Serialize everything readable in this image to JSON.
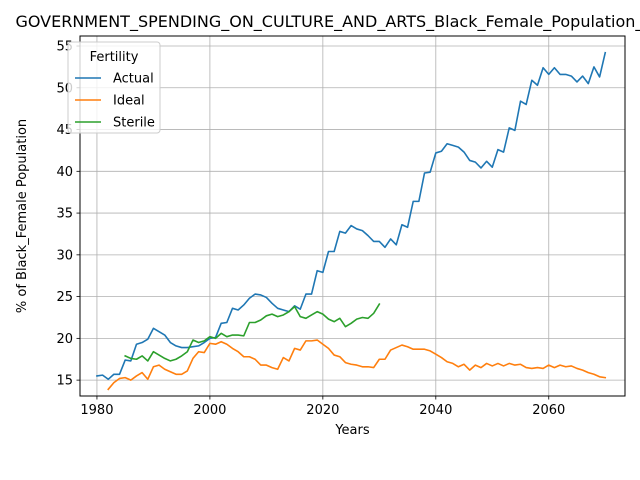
{
  "chart_data": {
    "type": "line",
    "title": "GOVERNMENT_SPENDING_ON_CULTURE_AND_ARTS_Black_Female_Population_Share",
    "xlabel": "Years",
    "ylabel": "% of Black_Female Population",
    "xlim": [
      1977,
      2073.5
    ],
    "ylim": [
      13.1,
      56.2
    ],
    "xticks": [
      1980,
      2000,
      2020,
      2040,
      2060
    ],
    "yticks": [
      15,
      20,
      25,
      30,
      35,
      40,
      45,
      50,
      55
    ],
    "grid": true,
    "legend": {
      "title": "Fertility",
      "position": "top-left"
    },
    "series": [
      {
        "name": "Actual",
        "color": "#1f77b4",
        "x": [
          1980,
          1981,
          1982,
          1983,
          1984,
          1985,
          1986,
          1987,
          1988,
          1989,
          1990,
          1991,
          1992,
          1993,
          1994,
          1995,
          1996,
          1997,
          1998,
          1999,
          2000,
          2001,
          2002,
          2003,
          2004,
          2005,
          2006,
          2007,
          2008,
          2009,
          2010,
          2011,
          2012,
          2013,
          2014,
          2015,
          2016,
          2017,
          2018,
          2019,
          2020,
          2021,
          2022,
          2023,
          2024,
          2025,
          2026,
          2027,
          2028,
          2029,
          2030,
          2031,
          2032,
          2033,
          2034,
          2035,
          2036,
          2037,
          2038,
          2039,
          2040,
          2041,
          2042,
          2043,
          2044,
          2045,
          2046,
          2047,
          2048,
          2049,
          2050,
          2051,
          2052,
          2053,
          2054,
          2055,
          2056,
          2057,
          2058,
          2059,
          2060,
          2061,
          2062,
          2063,
          2064,
          2065,
          2066,
          2067,
          2068,
          2069,
          2070
        ],
        "values": [
          15.5,
          15.6,
          15.1,
          15.7,
          15.7,
          17.4,
          17.3,
          19.3,
          19.5,
          19.9,
          21.2,
          20.8,
          20.4,
          19.5,
          19.1,
          18.9,
          18.9,
          19.0,
          19.1,
          19.5,
          20.0,
          20.1,
          21.8,
          21.9,
          23.6,
          23.4,
          24.0,
          24.8,
          25.3,
          25.2,
          24.9,
          24.2,
          23.6,
          23.4,
          23.2,
          23.9,
          23.5,
          25.3,
          25.3,
          28.1,
          27.9,
          30.4,
          30.4,
          32.8,
          32.6,
          33.5,
          33.1,
          32.9,
          32.3,
          31.6,
          31.6,
          30.9,
          31.9,
          31.2,
          33.6,
          33.3,
          36.4,
          36.4,
          39.8,
          39.9,
          42.2,
          42.4,
          43.3,
          43.1,
          42.9,
          42.3,
          41.3,
          41.1,
          40.4,
          41.2,
          40.5,
          42.6,
          42.3,
          45.2,
          44.9,
          48.4,
          48.0,
          50.9,
          50.3,
          52.4,
          51.6,
          52.4,
          51.6,
          51.6,
          51.4,
          50.7,
          51.4,
          50.5,
          52.5,
          51.3,
          54.2
        ]
      },
      {
        "name": "Ideal",
        "color": "#ff7f0e",
        "x": [
          1982,
          1983,
          1984,
          1985,
          1986,
          1987,
          1988,
          1989,
          1990,
          1991,
          1992,
          1993,
          1994,
          1995,
          1996,
          1997,
          1998,
          1999,
          2000,
          2001,
          2002,
          2003,
          2004,
          2005,
          2006,
          2007,
          2008,
          2009,
          2010,
          2011,
          2012,
          2013,
          2014,
          2015,
          2016,
          2017,
          2018,
          2019,
          2020,
          2021,
          2022,
          2023,
          2024,
          2025,
          2026,
          2027,
          2028,
          2029,
          2030,
          2031,
          2032,
          2033,
          2034,
          2035,
          2036,
          2037,
          2038,
          2039,
          2040,
          2041,
          2042,
          2043,
          2044,
          2045,
          2046,
          2047,
          2048,
          2049,
          2050,
          2051,
          2052,
          2053,
          2054,
          2055,
          2056,
          2057,
          2058,
          2059,
          2060,
          2061,
          2062,
          2063,
          2064,
          2065,
          2066,
          2067,
          2068,
          2069,
          2070
        ],
        "values": [
          13.9,
          14.7,
          15.2,
          15.3,
          15.0,
          15.5,
          15.9,
          15.1,
          16.6,
          16.8,
          16.3,
          16.0,
          15.7,
          15.7,
          16.1,
          17.6,
          18.4,
          18.3,
          19.4,
          19.3,
          19.6,
          19.3,
          18.8,
          18.4,
          17.8,
          17.8,
          17.5,
          16.8,
          16.8,
          16.5,
          16.3,
          17.7,
          17.3,
          18.8,
          18.6,
          19.7,
          19.7,
          19.8,
          19.3,
          18.8,
          18.0,
          17.8,
          17.1,
          16.9,
          16.8,
          16.6,
          16.6,
          16.5,
          17.5,
          17.5,
          18.6,
          18.9,
          19.2,
          19.0,
          18.7,
          18.7,
          18.7,
          18.5,
          18.1,
          17.7,
          17.2,
          17.0,
          16.6,
          16.9,
          16.2,
          16.8,
          16.5,
          17.0,
          16.7,
          17.0,
          16.7,
          17.0,
          16.8,
          16.9,
          16.5,
          16.4,
          16.5,
          16.4,
          16.8,
          16.5,
          16.8,
          16.6,
          16.7,
          16.4,
          16.2,
          15.9,
          15.7,
          15.4,
          15.3
        ]
      },
      {
        "name": "Sterile",
        "color": "#2ca02c",
        "x": [
          1985,
          1986,
          1987,
          1988,
          1989,
          1990,
          1991,
          1992,
          1993,
          1994,
          1995,
          1996,
          1997,
          1998,
          1999,
          2000,
          2001,
          2002,
          2003,
          2004,
          2005,
          2006,
          2007,
          2008,
          2009,
          2010,
          2011,
          2012,
          2013,
          2014,
          2015,
          2016,
          2017,
          2018,
          2019,
          2020,
          2021,
          2022,
          2023,
          2024,
          2025,
          2026,
          2027,
          2028,
          2029,
          2030
        ],
        "values": [
          17.9,
          17.6,
          17.5,
          17.9,
          17.3,
          18.4,
          18.0,
          17.6,
          17.3,
          17.5,
          17.9,
          18.4,
          19.8,
          19.5,
          19.7,
          20.2,
          20.0,
          20.6,
          20.2,
          20.4,
          20.4,
          20.3,
          21.9,
          21.9,
          22.2,
          22.7,
          22.9,
          22.6,
          22.8,
          23.2,
          23.8,
          22.6,
          22.4,
          22.8,
          23.2,
          22.9,
          22.3,
          22.0,
          22.4,
          21.4,
          21.8,
          22.3,
          22.5,
          22.4,
          23.0,
          24.1
        ]
      }
    ]
  }
}
